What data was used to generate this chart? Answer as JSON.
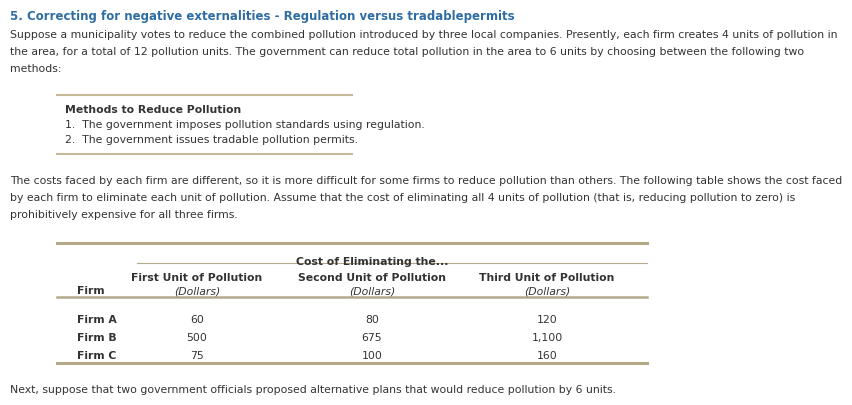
{
  "title": "5. Correcting for negative externalities - Regulation versus tradablepermits",
  "title_color": "#2e6da4",
  "bg_color": "#ffffff",
  "body_text_color": "#333333",
  "para1_lines": [
    "Suppose a municipality votes to reduce the combined pollution introduced by three local companies. Presently, each firm creates 4 units of pollution in",
    "the area, for a total of 12 pollution units. The government can reduce total pollution in the area to 6 units by choosing between the following two",
    "methods:"
  ],
  "box_title": "Methods to Reduce Pollution",
  "box_items": [
    "1.  The government imposes pollution standards using regulation.",
    "2.  The government issues tradable pollution permits."
  ],
  "box_line_color": "#c8b89a",
  "para2_lines": [
    "The costs faced by each firm are different, so it is more difficult for some firms to reduce pollution than others. The following table shows the cost faced",
    "by each firm to eliminate each unit of pollution. Assume that the cost of eliminating all 4 units of pollution (that is, reducing pollution to zero) is",
    "prohibitively expensive for all three firms."
  ],
  "table_header_main": "Cost of Eliminating the...",
  "table_col1_header": "First Unit of Pollution",
  "table_col2_header": "Second Unit of Pollution",
  "table_col3_header": "Third Unit of Pollution",
  "table_col_dollars": "(Dollars)",
  "table_row_label": "Firm",
  "table_rows": [
    {
      "firm": "Firm A",
      "col1": "60",
      "col2": "80",
      "col3": "120"
    },
    {
      "firm": "Firm B",
      "col1": "500",
      "col2": "675",
      "col3": "1,100"
    },
    {
      "firm": "Firm C",
      "col1": "75",
      "col2": "100",
      "col3": "160"
    }
  ],
  "table_line_color": "#b5a98a",
  "footer_text": "Next, suppose that two government officials proposed alternative plans that would reduce pollution by 6 units.",
  "font_size_title": 8.5,
  "font_size_body": 7.8,
  "font_size_table": 7.8,
  "font_size_table_header": 7.8
}
